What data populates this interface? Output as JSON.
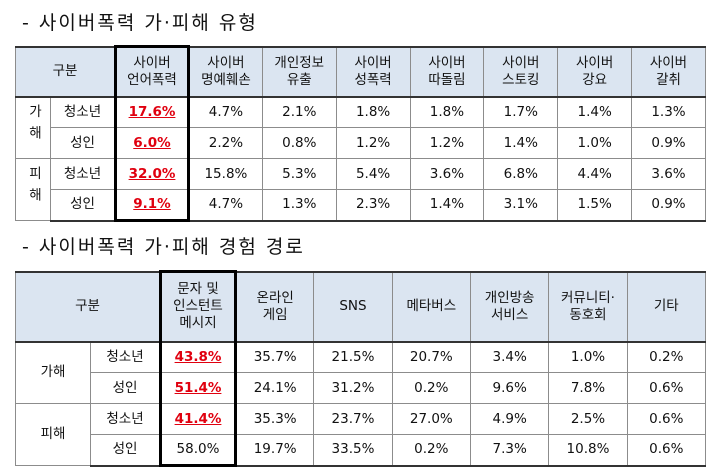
{
  "sections": [
    {
      "title": "- 사이버폭력 가·피해 유형",
      "table": {
        "corner": "구분",
        "highlight_column": 0,
        "vertical_groups": true,
        "headers": [
          [
            "사이버",
            "언어폭력"
          ],
          [
            "사이버",
            "명예훼손"
          ],
          [
            "개인정보",
            "유출"
          ],
          [
            "사이버",
            "성폭력"
          ],
          [
            "사이버",
            "따돌림"
          ],
          [
            "사이버",
            "스토킹"
          ],
          [
            "사이버",
            "강요"
          ],
          [
            "사이버",
            "갈취"
          ]
        ],
        "groups": [
          {
            "label": "가해",
            "rows": [
              {
                "label": "청소년",
                "highlight": true,
                "cells": [
                  "17.6%",
                  "4.7%",
                  "2.1%",
                  "1.8%",
                  "1.8%",
                  "1.7%",
                  "1.4%",
                  "1.3%"
                ]
              },
              {
                "label": "성인",
                "highlight": true,
                "cells": [
                  "6.0%",
                  "2.2%",
                  "0.8%",
                  "1.2%",
                  "1.2%",
                  "1.4%",
                  "1.0%",
                  "0.9%"
                ]
              }
            ]
          },
          {
            "label": "피해",
            "rows": [
              {
                "label": "청소년",
                "highlight": true,
                "cells": [
                  "32.0%",
                  "15.8%",
                  "5.3%",
                  "5.4%",
                  "3.6%",
                  "6.8%",
                  "4.4%",
                  "3.6%"
                ]
              },
              {
                "label": "성인",
                "highlight": true,
                "cells": [
                  "9.1%",
                  "4.7%",
                  "1.3%",
                  "2.3%",
                  "1.4%",
                  "3.1%",
                  "1.5%",
                  "0.9%"
                ]
              }
            ]
          }
        ]
      }
    },
    {
      "title": "- 사이버폭력 가·피해 경험 경로",
      "table": {
        "corner": "구분",
        "highlight_column": 0,
        "vertical_groups": false,
        "headers": [
          [
            "문자 및",
            "인스턴트",
            "메시지"
          ],
          [
            "온라인",
            "게임"
          ],
          [
            "SNS"
          ],
          [
            "메타버스"
          ],
          [
            "개인방송",
            "서비스"
          ],
          [
            "커뮤니티·",
            "동호회"
          ],
          [
            "기타"
          ]
        ],
        "groups": [
          {
            "label": "가해",
            "rows": [
              {
                "label": "청소년",
                "highlight": true,
                "cells": [
                  "43.8%",
                  "35.7%",
                  "21.5%",
                  "20.7%",
                  "3.4%",
                  "1.0%",
                  "0.2%"
                ]
              },
              {
                "label": "성인",
                "highlight": true,
                "cells": [
                  "51.4%",
                  "24.1%",
                  "31.2%",
                  "0.2%",
                  "9.6%",
                  "7.8%",
                  "0.6%"
                ]
              }
            ]
          },
          {
            "label": "피해",
            "rows": [
              {
                "label": "청소년",
                "highlight": true,
                "cells": [
                  "41.4%",
                  "35.3%",
                  "23.7%",
                  "27.0%",
                  "4.9%",
                  "2.5%",
                  "0.6%"
                ]
              },
              {
                "label": "성인",
                "highlight": false,
                "cells": [
                  "58.0%",
                  "19.7%",
                  "33.5%",
                  "0.2%",
                  "7.3%",
                  "10.8%",
                  "0.6%"
                ]
              }
            ]
          }
        ]
      }
    }
  ]
}
